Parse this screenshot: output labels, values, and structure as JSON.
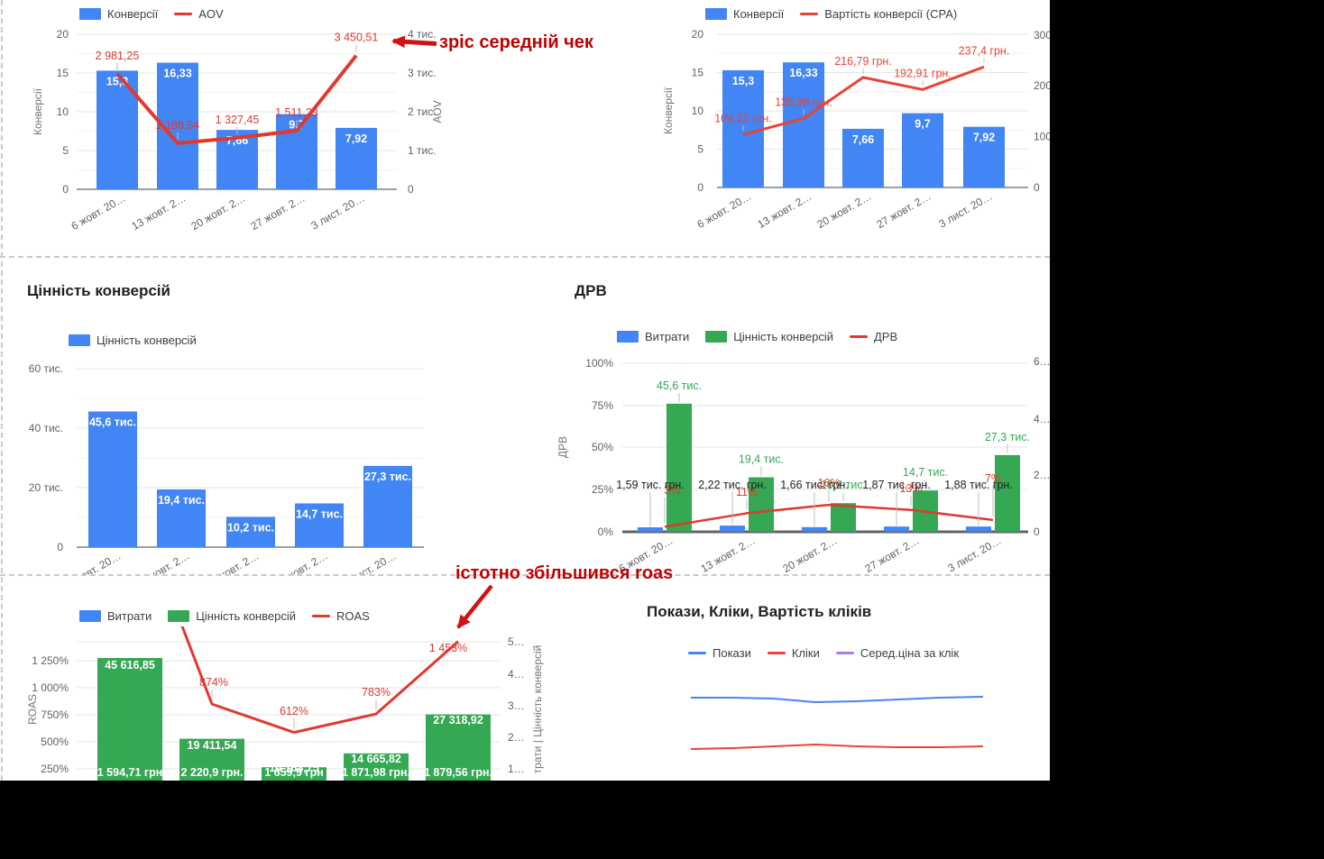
{
  "page": {
    "background": "#000000",
    "canvas_background": "#ffffff"
  },
  "annotations": {
    "aov_note": "зріс середній чек",
    "roas_note": "істотно збільшився roas",
    "color": "#c00000"
  },
  "chart_data": [
    {
      "id": "conversions-aov",
      "type": "bar+line",
      "categories": [
        "6 жовт. 20…",
        "13 жовт. 2…",
        "20 жовт. 2…",
        "27 жовт. 2…",
        "3 лист. 20…"
      ],
      "legend": [
        {
          "label": "Конверсії",
          "color": "#4285f4",
          "shape": "box"
        },
        {
          "label": "AOV",
          "color": "#e0392e",
          "shape": "line"
        }
      ],
      "left_axis": {
        "title": "Конверсії",
        "min": 0,
        "max": 20,
        "ticks": [
          "20",
          "15",
          "10",
          "5",
          "0"
        ]
      },
      "right_axis": {
        "title": "AOV",
        "min": 0,
        "max": 4000,
        "ticks": [
          "4 тис.",
          "3 тис.",
          "2 тис.",
          "1 тис.",
          "0"
        ]
      },
      "bars": {
        "name": "Конверсії",
        "color": "#4285f4",
        "values": [
          15.3,
          16.33,
          7.66,
          9.7,
          7.92
        ],
        "labels": [
          "15,3",
          "16,33",
          "7,66",
          "9,7",
          "7,92"
        ]
      },
      "line": {
        "name": "AOV",
        "color": "#e0392e",
        "values": [
          2981.25,
          1188.54,
          1327.45,
          1511.23,
          3450.51
        ],
        "labels": [
          "2 981,25",
          "1 188,54",
          "1 327,45",
          "1 511,23",
          "3 450,51"
        ]
      }
    },
    {
      "id": "conversions-cpa",
      "type": "bar+line",
      "categories": [
        "6 жовт. 20…",
        "13 жовт. 2…",
        "20 жовт. 2…",
        "27 жовт. 2…",
        "3 лист. 20…"
      ],
      "legend": [
        {
          "label": "Конверсії",
          "color": "#4285f4",
          "shape": "box"
        },
        {
          "label": "Вартість конверсії (CPA)",
          "color": "#ea4335",
          "shape": "line"
        }
      ],
      "left_axis": {
        "title": "Конверсії",
        "min": 0,
        "max": 20,
        "ticks": [
          "20",
          "15",
          "10",
          "5",
          "0"
        ]
      },
      "right_axis": {
        "min": 0,
        "max": 300,
        "ticks": [
          "300",
          "200",
          "100",
          "0"
        ]
      },
      "bars": {
        "name": "Конверсії",
        "color": "#4285f4",
        "values": [
          15.3,
          16.33,
          7.66,
          9.7,
          7.92
        ],
        "labels": [
          "15,3",
          "16,33",
          "7,66",
          "9,7",
          "7,92"
        ]
      },
      "line": {
        "name": "Вартість конверсії (CPA)",
        "color": "#ea4335",
        "values": [
          104.22,
          135.98,
          216.79,
          192.91,
          237.4
        ],
        "labels": [
          "104,22 грн.",
          "135,98 грн.",
          "216,79 грн.",
          "192,91 грн.",
          "237,4 грн."
        ]
      }
    },
    {
      "id": "conversion-value",
      "title": "Цінність конверсій",
      "type": "bar",
      "categories": [
        "6 жовт. 20…",
        "13 жовт. 2…",
        "20 жовт. 2…",
        "27 жовт. 2…",
        "3 лист. 20…"
      ],
      "legend": [
        {
          "label": "Цінність конверсій",
          "color": "#4285f4",
          "shape": "box"
        }
      ],
      "left_axis": {
        "min": 0,
        "max": 60000,
        "ticks": [
          "60 тис.",
          "40 тис.",
          "20 тис.",
          "0"
        ]
      },
      "bars": {
        "name": "Цінність конверсій",
        "color": "#4285f4",
        "values": [
          45600,
          19400,
          10200,
          14700,
          27300
        ],
        "labels": [
          "45,6 тис.",
          "19,4 тис.",
          "10,2 тис.",
          "14,7 тис.",
          "27,3 тис."
        ]
      }
    },
    {
      "id": "drv",
      "title": "ДРВ",
      "type": "grouped-bar+line",
      "categories": [
        "6 жовт. 20…",
        "13 жовт. 2…",
        "20 жовт. 2…",
        "27 жовт. 2…",
        "3 лист. 20…"
      ],
      "legend": [
        {
          "label": "Витрати",
          "color": "#4285f4",
          "shape": "box"
        },
        {
          "label": "Цінність конверсій",
          "color": "#34a853",
          "shape": "box"
        },
        {
          "label": "ДРВ",
          "color": "#e0392e",
          "shape": "line"
        }
      ],
      "left_axis": {
        "title": "ДРВ",
        "min": 0,
        "max": 100,
        "ticks": [
          "100%",
          "75%",
          "50%",
          "25%",
          "0%"
        ]
      },
      "right_axis": {
        "min": 0,
        "max": 60000,
        "ticks": [
          "6…",
          "4…",
          "2…",
          "0"
        ]
      },
      "spend": {
        "name": "Витрати",
        "color": "#4285f4",
        "values": [
          1590,
          2220,
          1660,
          1870,
          1880
        ],
        "labels": [
          "1,59 тис. грн.",
          "2,22 тис. грн.",
          "1,66 тис. грн.",
          "1,87 тис. грн.",
          "1,88 тис. грн."
        ]
      },
      "value": {
        "name": "Цінність конверсій",
        "color": "#34a853",
        "values": [
          45600,
          19400,
          10200,
          14700,
          27300
        ],
        "labels": [
          "45,6 тис.",
          "19,4 тис.",
          "10,2 тис.",
          "14,7 тис.",
          "27,3 тис."
        ]
      },
      "line": {
        "name": "ДРВ",
        "color": "#e0392e",
        "values": [
          3,
          11,
          16,
          13,
          7
        ],
        "labels": [
          "3%",
          "11%",
          "16%",
          "13%",
          "7%"
        ]
      }
    },
    {
      "id": "roas",
      "type": "grouped-bar+line",
      "legend": [
        {
          "label": "Витрати",
          "color": "#4285f4",
          "shape": "box"
        },
        {
          "label": "Цінність конверсій",
          "color": "#34a853",
          "shape": "box"
        },
        {
          "label": "ROAS",
          "color": "#e0392e",
          "shape": "line"
        }
      ],
      "left_axis": {
        "title": "ROAS",
        "ticks": [
          "1 250%",
          "1 000%",
          "750%",
          "500%",
          "250%"
        ]
      },
      "right_axis": {
        "title": "трати | Цінність конверсій",
        "ticks": [
          "5…",
          "4…",
          "3…",
          "2…",
          "1…"
        ]
      },
      "value": {
        "name": "Цінність конверсій",
        "color": "#34a853",
        "values": [
          45616.85,
          19411.54,
          10163.75,
          14665.82,
          27318.92
        ],
        "labels": [
          "45 616,85",
          "19 411,54",
          "10 163,75",
          "14 665,82",
          "27 318,92"
        ]
      },
      "spend": {
        "name": "Витрати",
        "color": "#4285f4",
        "values": [
          1594.71,
          2220.9,
          1659.9,
          1871.98,
          1879.56
        ],
        "labels": [
          "1 594,71 грн",
          "2 220,9 грн.",
          "1 659,9 грн",
          "1 871,98 грн.",
          "1 879,56 грн."
        ]
      },
      "line": {
        "name": "ROAS",
        "color": "#e0392e",
        "values": [
          null,
          874,
          612,
          783,
          1453
        ],
        "labels": [
          "",
          "874%",
          "612%",
          "783%",
          "1 453%"
        ]
      }
    },
    {
      "id": "impressions-clicks-cpc",
      "title": "Покази, Кліки, Вартість кліків",
      "type": "line",
      "legend": [
        {
          "label": "Покази",
          "color": "#4285f4",
          "shape": "line"
        },
        {
          "label": "Кліки",
          "color": "#ea4335",
          "shape": "line"
        },
        {
          "label": "Серед.ціна за клік",
          "color": "#a97ce8",
          "shape": "line"
        }
      ]
    }
  ]
}
